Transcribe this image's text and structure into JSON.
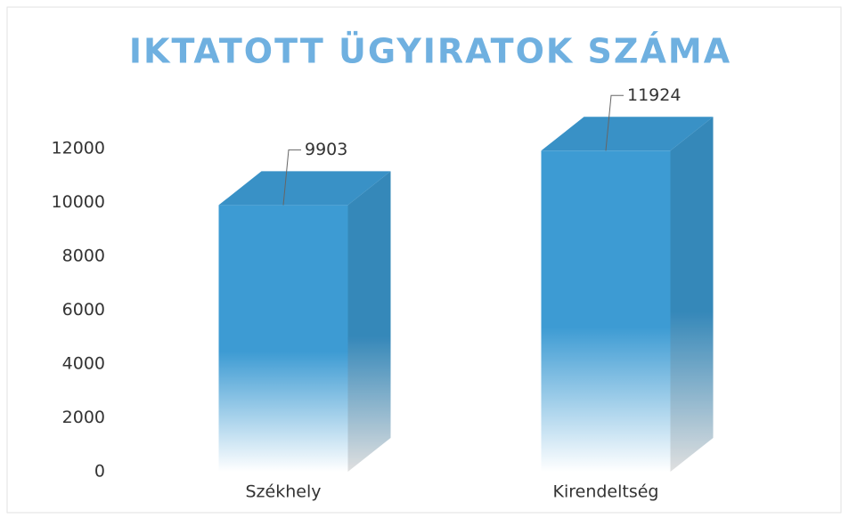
{
  "chart_data": {
    "type": "bar3d",
    "title": "IKTATOTT ÜGYIRATOK SZÁMA",
    "categories": [
      "Székhely",
      "Kirendeltség"
    ],
    "values": [
      9903,
      11924
    ],
    "color": "#3d9bd3",
    "ylim": [
      0,
      12000
    ],
    "yticks": [
      0,
      2000,
      4000,
      6000,
      8000,
      10000,
      12000
    ],
    "grid": false
  }
}
